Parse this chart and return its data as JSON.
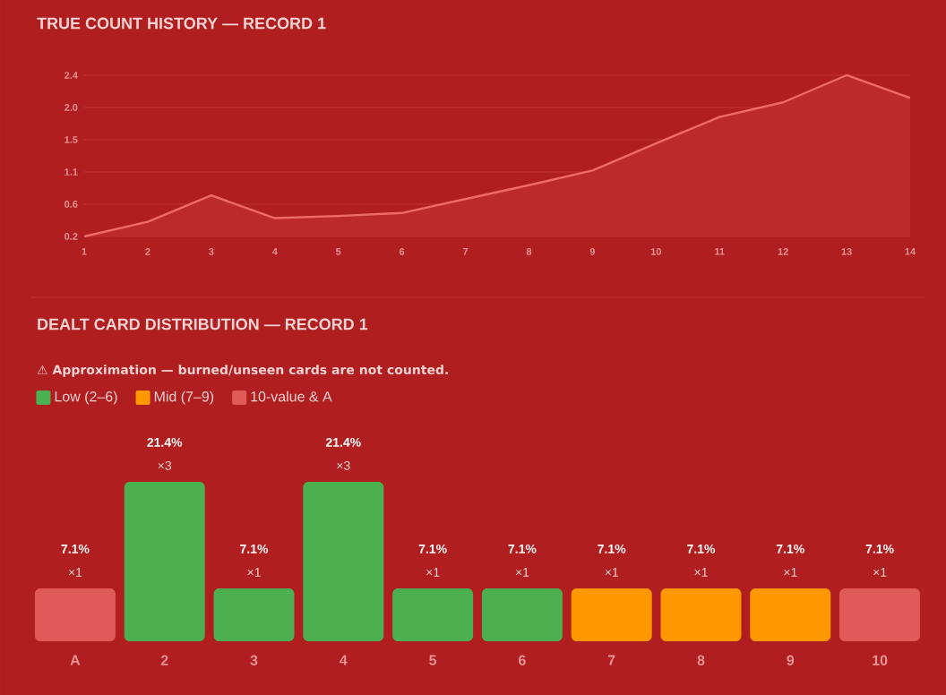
{
  "chart_data": [
    {
      "type": "area",
      "title": "TRUE COUNT HISTORY — RECORD 1",
      "x": [
        1,
        2,
        3,
        4,
        5,
        6,
        7,
        8,
        9,
        10,
        11,
        12,
        13,
        14
      ],
      "series": [
        {
          "color": "#f06a6a",
          "values": [
            0.2,
            0.4,
            0.76,
            0.45,
            0.48,
            0.52,
            0.71,
            0.9,
            1.1,
            1.47,
            1.83,
            2.03,
            2.4,
            2.09
          ]
        }
      ],
      "xlim": [
        1,
        14
      ],
      "xticks": [
        1,
        2,
        3,
        4,
        5,
        6,
        7,
        8,
        9,
        10,
        11,
        12,
        13,
        14
      ],
      "ylim": [
        0.2,
        2.4
      ],
      "yticks": [
        0.2,
        {
          "value": 0.64,
          "label": "0.6"
        },
        {
          "value": 1.08,
          "label": "1.1"
        },
        {
          "value": 1.52,
          "label": "1.5"
        },
        {
          "value": 1.96,
          "label": "2.0"
        },
        2.4
      ],
      "grid": "y",
      "marker": "none",
      "line_style": "solid"
    },
    {
      "type": "bar",
      "title": "DEALT CARD DISTRIBUTION — RECORD 1",
      "subtitle": "⚠ Approximation — burned/unseen cards are not counted.",
      "categories": [
        "A",
        "2",
        "3",
        "4",
        "5",
        "6",
        "7",
        "8",
        "9",
        "10"
      ],
      "series": [
        {
          "name": "Low (2–6)",
          "color": "#4caf50",
          "values": [
            null,
            21.4,
            7.1,
            21.4,
            7.1,
            7.1,
            null,
            null,
            null,
            null
          ],
          "value_labels": [
            null,
            "21.4%",
            "7.1%",
            "21.4%",
            "7.1%",
            "7.1%",
            null,
            null,
            null,
            null
          ]
        },
        {
          "name": "Mid (7–9)",
          "color": "#ff9800",
          "values": [
            null,
            null,
            null,
            null,
            null,
            null,
            7.1,
            7.1,
            7.1,
            null
          ],
          "value_labels": [
            null,
            null,
            null,
            null,
            null,
            null,
            "7.1%",
            "7.1%",
            "7.1%",
            null
          ]
        },
        {
          "name": "10-value & A",
          "color": "#e05a5a",
          "values": [
            7.1,
            null,
            null,
            null,
            null,
            null,
            null,
            null,
            null,
            7.1
          ],
          "value_labels": [
            "7.1%",
            null,
            null,
            null,
            null,
            null,
            null,
            null,
            null,
            "7.1%"
          ]
        }
      ],
      "annotations": [
        {
          "text": "×1",
          "x": "A",
          "y": 7.1
        },
        {
          "text": "×3",
          "x": "2",
          "y": 21.4
        },
        {
          "text": "×1",
          "x": "3",
          "y": 7.1
        },
        {
          "text": "×3",
          "x": "4",
          "y": 21.4
        },
        {
          "text": "×1",
          "x": "5",
          "y": 7.1
        },
        {
          "text": "×1",
          "x": "6",
          "y": 7.1
        },
        {
          "text": "×1",
          "x": "7",
          "y": 7.1
        },
        {
          "text": "×1",
          "x": "8",
          "y": 7.1
        },
        {
          "text": "×1",
          "x": "9",
          "y": 7.1
        },
        {
          "text": "×1",
          "x": "10",
          "y": 7.1
        }
      ],
      "legend": "top left"
    }
  ]
}
